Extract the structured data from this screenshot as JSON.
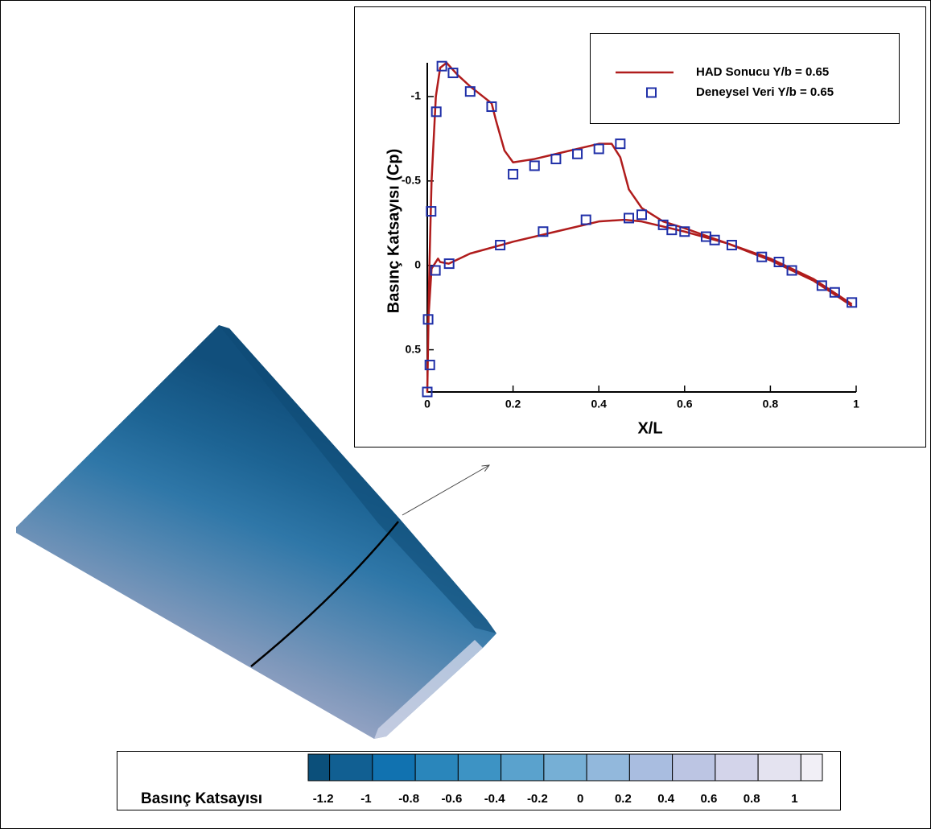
{
  "chart_data": {
    "type": "line",
    "x_label": "X/L",
    "y_label": "Basınç Katsayısı (Cp)",
    "xlim": [
      0,
      1
    ],
    "xticks": [
      0,
      0.2,
      0.4,
      0.6,
      0.8,
      1
    ],
    "ylim": [
      0.75,
      -1.2
    ],
    "yticks": [
      -1,
      -0.5,
      0,
      0.5
    ],
    "series": [
      {
        "name": "HAD Sonucu Y/b = 0.65",
        "color": "#b01c1c",
        "x": [
          0.99,
          0.9,
          0.8,
          0.7,
          0.6,
          0.5,
          0.46,
          0.4,
          0.3,
          0.2,
          0.1,
          0.05,
          0.03,
          0.025,
          0.01,
          0.003,
          0,
          0.002,
          0.005,
          0.01,
          0.02,
          0.03,
          0.045,
          0.07,
          0.1,
          0.13,
          0.15,
          0.16,
          0.18,
          0.2,
          0.25,
          0.3,
          0.35,
          0.4,
          0.43,
          0.45,
          0.47,
          0.5,
          0.55,
          0.6,
          0.7,
          0.8,
          0.9,
          0.99
        ],
        "values": [
          0.23,
          0.08,
          -0.04,
          -0.13,
          -0.2,
          -0.26,
          -0.27,
          -0.26,
          -0.2,
          -0.14,
          -0.07,
          -0.01,
          -0.02,
          -0.04,
          0.02,
          0.3,
          0.75,
          0.4,
          0,
          -0.5,
          -1.0,
          -1.17,
          -1.2,
          -1.13,
          -1.06,
          -1.0,
          -0.96,
          -0.86,
          -0.68,
          -0.61,
          -0.63,
          -0.66,
          -0.69,
          -0.72,
          -0.72,
          -0.64,
          -0.45,
          -0.34,
          -0.26,
          -0.22,
          -0.13,
          -0.03,
          0.09,
          0.24
        ]
      },
      {
        "name": "Deneysel Veri Y/b = 0.65",
        "color": "#1f2fa8",
        "marker": "square",
        "x": [
          0,
          0.006,
          0.002,
          0.009,
          0.019,
          0.021,
          0.034,
          0.06,
          0.051,
          0.1,
          0.15,
          0.17,
          0.2,
          0.25,
          0.27,
          0.3,
          0.35,
          0.37,
          0.4,
          0.45,
          0.47,
          0.5,
          0.55,
          0.57,
          0.6,
          0.65,
          0.67,
          0.71,
          0.78,
          0.82,
          0.85,
          0.92,
          0.95,
          0.99
        ],
        "values": [
          0.75,
          0.59,
          0.32,
          -0.32,
          0.03,
          -0.91,
          -1.18,
          -1.14,
          -0.01,
          -1.03,
          -0.94,
          -0.12,
          -0.54,
          -0.59,
          -0.2,
          -0.63,
          -0.66,
          -0.27,
          -0.69,
          -0.72,
          -0.28,
          -0.3,
          -0.24,
          -0.21,
          -0.2,
          -0.17,
          -0.15,
          -0.12,
          -0.05,
          -0.02,
          0.03,
          0.12,
          0.16,
          0.22
        ]
      }
    ]
  },
  "colorbar": {
    "title": "Basınç Katsayısı",
    "ticks": [
      -1.2,
      -1,
      -0.8,
      -0.6,
      -0.4,
      -0.2,
      0,
      0.2,
      0.4,
      0.6,
      0.8,
      1
    ],
    "colors": [
      "#0b4f7a",
      "#115f92",
      "#1172b0",
      "#2a86bb",
      "#3d93c4",
      "#5aa2cd",
      "#76afd5",
      "#92b8dc",
      "#a9bde0",
      "#bcc5e3",
      "#d3d4ea",
      "#e4e3f0",
      "#f1eff6"
    ]
  }
}
